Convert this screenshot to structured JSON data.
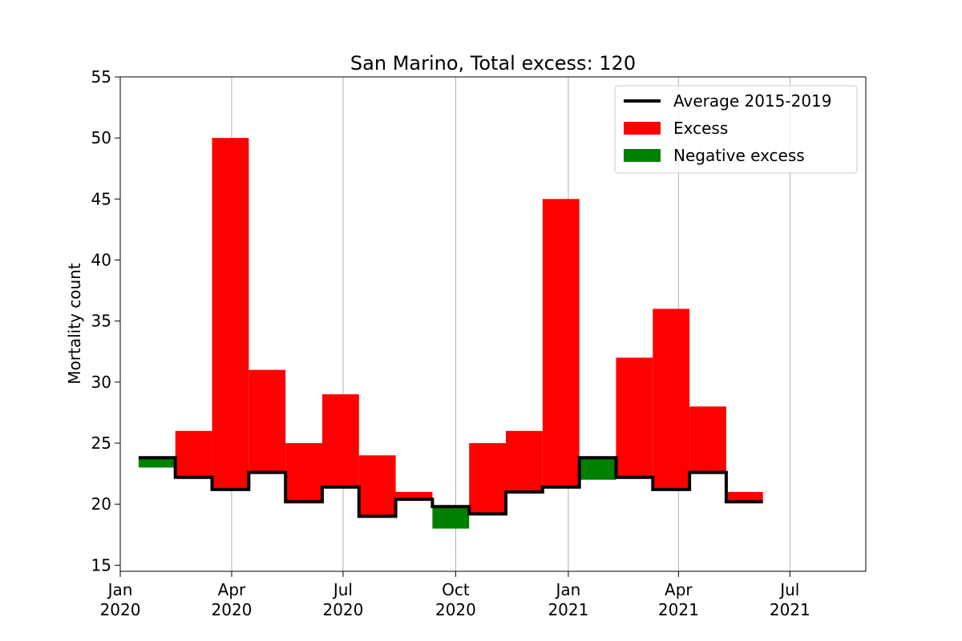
{
  "chart_data": {
    "type": "bar",
    "title": "San Marino, Total excess: 120",
    "xlabel": "",
    "ylabel": "Mortality count",
    "ylim": [
      14.5,
      55
    ],
    "yticks": [
      15,
      20,
      25,
      30,
      35,
      40,
      45,
      50,
      55
    ],
    "xlim": [
      "2020-01-01",
      "2021-09-01"
    ],
    "xticks": [
      {
        "date": "2020-01-01",
        "label": [
          "Jan",
          "2020"
        ]
      },
      {
        "date": "2020-04-01",
        "label": [
          "Apr",
          "2020"
        ]
      },
      {
        "date": "2020-07-01",
        "label": [
          "Jul",
          "2020"
        ]
      },
      {
        "date": "2020-10-01",
        "label": [
          "Oct",
          "2020"
        ]
      },
      {
        "date": "2021-01-01",
        "label": [
          "Jan",
          "2021"
        ]
      },
      {
        "date": "2021-04-01",
        "label": [
          "Apr",
          "2021"
        ]
      },
      {
        "date": "2021-07-01",
        "label": [
          "Jul",
          "2021"
        ]
      }
    ],
    "grid": "x-major",
    "legend_position": "top-right",
    "legend": [
      "Average 2015-2019",
      "Excess",
      "Negative excess"
    ],
    "colors": {
      "average": "#000000",
      "excess": "#ff0000",
      "negative": "#008000"
    },
    "periods": [
      {
        "start": "2020-01-16",
        "end": "2020-02-15",
        "observed": 23.0,
        "average": 23.8
      },
      {
        "start": "2020-02-15",
        "end": "2020-03-16",
        "observed": 26.0,
        "average": 22.2
      },
      {
        "start": "2020-03-16",
        "end": "2020-04-15",
        "observed": 50.0,
        "average": 21.2
      },
      {
        "start": "2020-04-15",
        "end": "2020-05-15",
        "observed": 31.0,
        "average": 22.6
      },
      {
        "start": "2020-05-15",
        "end": "2020-06-14",
        "observed": 25.0,
        "average": 20.2
      },
      {
        "start": "2020-06-14",
        "end": "2020-07-14",
        "observed": 29.0,
        "average": 21.4
      },
      {
        "start": "2020-07-14",
        "end": "2020-08-13",
        "observed": 24.0,
        "average": 19.0
      },
      {
        "start": "2020-08-13",
        "end": "2020-09-12",
        "observed": 21.0,
        "average": 20.4
      },
      {
        "start": "2020-09-12",
        "end": "2020-10-12",
        "observed": 18.0,
        "average": 19.8
      },
      {
        "start": "2020-10-12",
        "end": "2020-11-11",
        "observed": 25.0,
        "average": 19.2
      },
      {
        "start": "2020-11-11",
        "end": "2020-12-11",
        "observed": 26.0,
        "average": 21.0
      },
      {
        "start": "2020-12-11",
        "end": "2021-01-10",
        "observed": 45.0,
        "average": 21.4
      },
      {
        "start": "2021-01-10",
        "end": "2021-02-09",
        "observed": 22.0,
        "average": 23.8
      },
      {
        "start": "2021-02-09",
        "end": "2021-03-11",
        "observed": 32.0,
        "average": 22.2
      },
      {
        "start": "2021-03-11",
        "end": "2021-04-10",
        "observed": 36.0,
        "average": 21.2
      },
      {
        "start": "2021-04-10",
        "end": "2021-05-10",
        "observed": 28.0,
        "average": 22.6
      },
      {
        "start": "2021-05-10",
        "end": "2021-06-09",
        "observed": 21.0,
        "average": 20.2
      }
    ]
  }
}
